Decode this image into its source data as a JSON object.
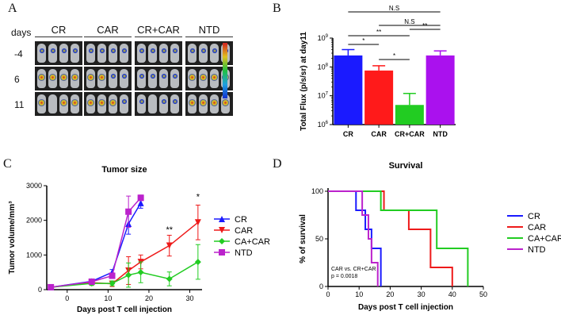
{
  "panels": {
    "a": {
      "letter": "A"
    },
    "b": {
      "letter": "B"
    },
    "c": {
      "letter": "C"
    },
    "d": {
      "letter": "D"
    }
  },
  "panel_a": {
    "days_label": "days",
    "groups": [
      "CR",
      "CAR",
      "CR+CAR",
      "NTD"
    ],
    "days": [
      "-4",
      "6",
      "11"
    ],
    "colors": {
      "background": "#202020",
      "mouse": "#b9bcc0",
      "signal_hot": "#d02020",
      "signal_warm": "#e0d020",
      "signal_cool": "#1030d0"
    }
  },
  "chart_data": [
    {
      "id": "B",
      "type": "bar",
      "ylabel": "Total Flux (p/s/sr) at day11",
      "yscale": "log",
      "ylim": [
        1000000,
        1000000000
      ],
      "yticks": [
        {
          "value": 1000000,
          "base": "10",
          "exp": "6"
        },
        {
          "value": 10000000,
          "base": "10",
          "exp": "7"
        },
        {
          "value": 100000000,
          "base": "10",
          "exp": "8"
        },
        {
          "value": 1000000000,
          "base": "10",
          "exp": "9"
        }
      ],
      "categories": [
        "CR",
        "CAR",
        "CR+CAR",
        "NTD"
      ],
      "values": [
        250000000,
        75000000,
        4800000,
        250000000
      ],
      "errors": [
        400000000,
        110000000,
        12000000,
        360000000
      ],
      "colors": [
        "#1a1aff",
        "#ff1a1a",
        "#22cc22",
        "#aa11ee"
      ],
      "significance": [
        {
          "from": 0,
          "to": 3,
          "label": "N.S"
        },
        {
          "from": 1,
          "to": 3,
          "label": "N.S"
        },
        {
          "from": 2,
          "to": 3,
          "label": "**"
        },
        {
          "from": 0,
          "to": 2,
          "label": "**"
        },
        {
          "from": 0,
          "to": 1,
          "label": "*"
        },
        {
          "from": 1,
          "to": 2,
          "label": "*"
        }
      ]
    },
    {
      "id": "C",
      "type": "line",
      "title": "Tumor size",
      "xlabel": "Days post T cell injection",
      "ylabel": "Tumor volume/mm³",
      "xlim": [
        -5,
        33
      ],
      "ylim": [
        0,
        3000
      ],
      "xticks": [
        0,
        10,
        20,
        30
      ],
      "yticks": [
        0,
        1000,
        2000,
        3000
      ],
      "series": [
        {
          "name": "CR",
          "marker": "triangle-up",
          "color": "#1a1aff",
          "x": [
            -4,
            6,
            11,
            15,
            18
          ],
          "y": [
            70,
            240,
            500,
            1900,
            2500
          ],
          "err": [
            30,
            60,
            80,
            300,
            150
          ]
        },
        {
          "name": "CAR",
          "marker": "triangle-down",
          "color": "#ee1a1a",
          "x": [
            -4,
            6,
            11,
            15,
            18,
            25,
            32
          ],
          "y": [
            70,
            200,
            170,
            550,
            800,
            1270,
            1940
          ],
          "err": [
            30,
            60,
            80,
            400,
            200,
            300,
            500
          ]
        },
        {
          "name": "CA+CAR",
          "marker": "diamond",
          "color": "#22cc22",
          "x": [
            -4,
            6,
            11,
            15,
            18,
            25,
            32
          ],
          "y": [
            70,
            180,
            180,
            420,
            500,
            310,
            800
          ],
          "err": [
            30,
            60,
            70,
            350,
            300,
            200,
            500
          ]
        },
        {
          "name": "NTD",
          "marker": "square",
          "color": "#bb22cc",
          "x": [
            -4,
            6,
            11,
            15,
            18
          ],
          "y": [
            70,
            230,
            400,
            2250,
            2650
          ],
          "err": [
            30,
            60,
            80,
            450,
            80
          ]
        }
      ],
      "annotations": [
        {
          "x": 25,
          "y": 1650,
          "text": "**"
        },
        {
          "x": 32,
          "y": 2600,
          "text": "*"
        }
      ]
    },
    {
      "id": "D",
      "type": "line",
      "title": "Survival",
      "xlabel": "Days post T cell injection",
      "ylabel": "% of survival",
      "xlim": [
        0,
        50
      ],
      "ylim": [
        0,
        100
      ],
      "xticks": [
        0,
        10,
        20,
        30,
        40,
        50
      ],
      "yticks": [
        0,
        50,
        100
      ],
      "stat_text": [
        "CAR vs. CR+CAR",
        "p = 0.0018"
      ],
      "series": [
        {
          "name": "CR",
          "color": "#1a1aff",
          "steps": [
            [
              0,
              100
            ],
            [
              9,
              80
            ],
            [
              12,
              60
            ],
            [
              14,
              40
            ],
            [
              17,
              0
            ]
          ]
        },
        {
          "name": "CAR",
          "color": "#ee1a1a",
          "steps": [
            [
              0,
              100
            ],
            [
              18,
              80
            ],
            [
              26,
              60
            ],
            [
              33,
              20
            ],
            [
              40,
              0
            ]
          ]
        },
        {
          "name": "CA+CAR",
          "color": "#22cc22",
          "steps": [
            [
              0,
              100
            ],
            [
              17,
              80
            ],
            [
              35,
              40
            ],
            [
              45,
              0
            ]
          ]
        },
        {
          "name": "NTD",
          "color": "#bb22cc",
          "steps": [
            [
              0,
              100
            ],
            [
              11,
              75
            ],
            [
              13,
              50
            ],
            [
              14,
              25
            ],
            [
              16,
              0
            ]
          ]
        }
      ]
    }
  ]
}
